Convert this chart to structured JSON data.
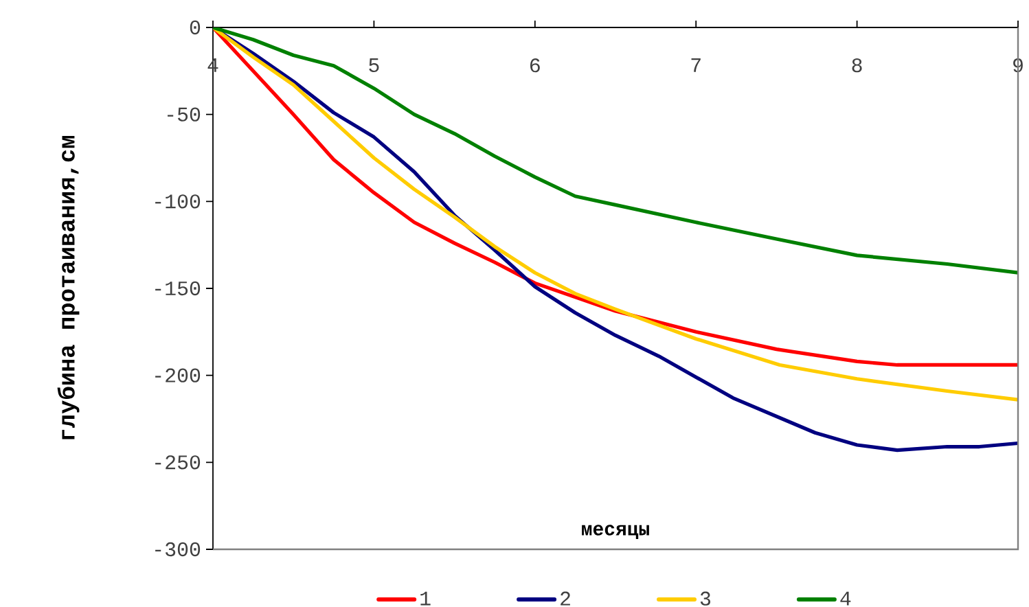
{
  "chart_data": {
    "type": "line",
    "xlabel": "месяцы",
    "ylabel": "глубина протаивания,см",
    "xlim": [
      4,
      9
    ],
    "xticks": [
      4,
      5,
      6,
      7,
      8,
      9
    ],
    "ylim": [
      -300,
      0
    ],
    "yticks": [
      0,
      -50,
      -100,
      -150,
      -200,
      -250,
      -300
    ],
    "legend": "bottom",
    "series": [
      {
        "name": "1",
        "color": "#ff0000",
        "x": [
          4,
          4.25,
          4.5,
          4.75,
          5,
          5.25,
          5.5,
          5.75,
          6,
          6.25,
          6.5,
          7,
          7.5,
          8,
          8.25,
          9
        ],
        "values": [
          0,
          -25,
          -50,
          -76,
          -95,
          -112,
          -124,
          -135,
          -147,
          -155,
          -163,
          -175,
          -185,
          -192,
          -194,
          -194
        ]
      },
      {
        "name": "2",
        "color": "#000080",
        "x": [
          4,
          4.25,
          4.5,
          4.75,
          5,
          5.25,
          5.5,
          5.75,
          6,
          6.25,
          6.5,
          6.77,
          7.23,
          7.74,
          8,
          8.25,
          8.56,
          8.76,
          9
        ],
        "values": [
          0,
          -15,
          -31,
          -49,
          -63,
          -83,
          -108,
          -128,
          -149,
          -164,
          -177,
          -189,
          -213,
          -233,
          -240,
          -243,
          -241,
          -241,
          -239
        ]
      },
      {
        "name": "3",
        "color": "#ffcc00",
        "x": [
          4,
          4.25,
          4.5,
          4.75,
          5,
          5.25,
          5.5,
          5.75,
          6,
          6.25,
          6.5,
          7,
          7.52,
          8,
          8.56,
          9
        ],
        "values": [
          0,
          -17,
          -33,
          -54,
          -75,
          -93,
          -109,
          -126,
          -141,
          -153,
          -162,
          -179,
          -194,
          -202,
          -209,
          -214
        ]
      },
      {
        "name": "4",
        "color": "#008000",
        "x": [
          4,
          4.25,
          4.5,
          4.75,
          5,
          5.25,
          5.5,
          5.75,
          6,
          6.25,
          6.5,
          7,
          7.52,
          8,
          8.56,
          9
        ],
        "values": [
          0,
          -7,
          -16,
          -22,
          -35,
          -50,
          -61,
          -74,
          -86,
          -97,
          -102,
          -112,
          -122,
          -131,
          -136,
          -141
        ]
      }
    ]
  }
}
